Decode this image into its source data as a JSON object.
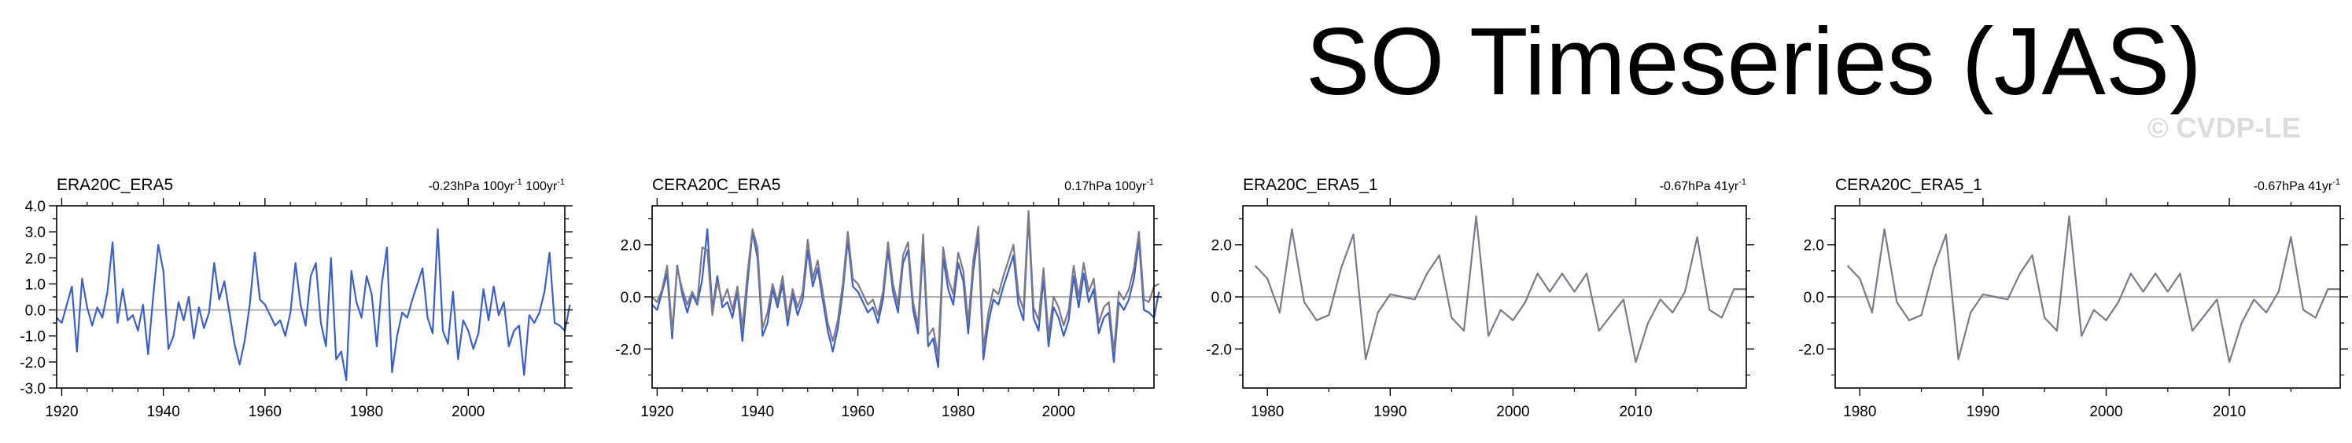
{
  "page": {
    "title": "SO Timeseries (JAS)",
    "watermark": "© CVDP-LE"
  },
  "chart_data": [
    {
      "type": "line",
      "title": "ERA20C_ERA5",
      "trend": {
        "value": "-0.23hPa 100yr",
        "exp1": "-1",
        "mid": " 100yr",
        "exp2": "-1"
      },
      "xlim": [
        1919,
        2019
      ],
      "ylim": [
        -3.0,
        4.0
      ],
      "xticks": [
        1920,
        1940,
        1960,
        1980,
        2000
      ],
      "yticks": [
        -3.0,
        -2.0,
        -1.0,
        0.0,
        1.0,
        2.0,
        3.0,
        4.0
      ],
      "ytick_labels": [
        "-3.0",
        "-2.0",
        "-1.0",
        "0.0",
        "1.0",
        "2.0",
        "3.0",
        "4.0"
      ],
      "zero_line": true,
      "series": [
        {
          "name": "ERA20C_ERA5",
          "color": "#3a5fcd",
          "x_start": 1919,
          "values": [
            -0.3,
            -0.5,
            0.2,
            0.9,
            -1.6,
            1.2,
            0.1,
            -0.6,
            0.1,
            -0.3,
            0.7,
            2.6,
            -0.5,
            0.8,
            -0.4,
            -0.2,
            -0.8,
            0.2,
            -1.7,
            0.5,
            2.5,
            1.5,
            -1.5,
            -1.0,
            0.3,
            -0.4,
            0.5,
            -1.1,
            0.1,
            -0.7,
            -0.1,
            1.8,
            0.4,
            1.1,
            -0.1,
            -1.3,
            -2.1,
            -1.2,
            0.2,
            2.2,
            0.4,
            0.2,
            -0.2,
            -0.6,
            -0.4,
            -1.0,
            -0.1,
            1.8,
            0.2,
            -0.6,
            1.3,
            1.8,
            -0.5,
            -1.4,
            2.0,
            -1.9,
            -1.6,
            -2.7,
            1.5,
            0.3,
            -0.3,
            1.3,
            0.6,
            -1.4,
            1.0,
            2.4,
            -2.4,
            -1.0,
            -0.1,
            -0.3,
            0.4,
            1.0,
            1.6,
            -0.3,
            -0.9,
            3.1,
            -0.8,
            -1.3,
            0.7,
            -1.9,
            -0.4,
            -0.8,
            -1.5,
            -0.9,
            0.8,
            -0.4,
            0.9,
            -0.2,
            0.3,
            -1.4,
            -0.8,
            -0.6,
            -2.5,
            -0.2,
            -0.5,
            -0.1,
            0.7,
            2.2,
            -0.5,
            -0.6,
            -0.8,
            0.2
          ]
        }
      ]
    },
    {
      "type": "line",
      "title": "CERA20C_ERA5",
      "trend": {
        "value": "0.17hPa 100yr",
        "exp1": "-1",
        "mid": "",
        "exp2": ""
      },
      "xlim": [
        1919,
        2019
      ],
      "ylim": [
        -3.5,
        3.5
      ],
      "xticks": [
        1920,
        1940,
        1960,
        1980,
        2000
      ],
      "yticks": [
        -2.0,
        0.0,
        2.0
      ],
      "ytick_labels": [
        "-2.0",
        "0.0",
        "2.0"
      ],
      "zero_line": true,
      "series": [
        {
          "name": "ERA20C_ERA5",
          "color": "#3a5fcd",
          "x_start": 1919,
          "values": [
            -0.3,
            -0.5,
            0.2,
            0.9,
            -1.6,
            1.2,
            0.1,
            -0.6,
            0.1,
            -0.3,
            0.7,
            2.6,
            -0.5,
            0.8,
            -0.4,
            -0.2,
            -0.8,
            0.2,
            -1.7,
            0.5,
            2.5,
            1.5,
            -1.5,
            -1.0,
            0.3,
            -0.4,
            0.5,
            -1.1,
            0.1,
            -0.7,
            -0.1,
            1.8,
            0.4,
            1.1,
            -0.1,
            -1.3,
            -2.1,
            -1.2,
            0.2,
            2.2,
            0.4,
            0.2,
            -0.2,
            -0.6,
            -0.4,
            -1.0,
            -0.1,
            1.8,
            0.2,
            -0.6,
            1.3,
            1.8,
            -0.5,
            -1.4,
            2.0,
            -1.9,
            -1.6,
            -2.7,
            1.5,
            0.3,
            -0.3,
            1.3,
            0.6,
            -1.4,
            1.0,
            2.4,
            -2.4,
            -1.0,
            -0.1,
            -0.3,
            0.4,
            1.0,
            1.6,
            -0.3,
            -0.9,
            3.1,
            -0.8,
            -1.3,
            0.7,
            -1.9,
            -0.4,
            -0.8,
            -1.5,
            -0.9,
            0.8,
            -0.4,
            0.9,
            -0.2,
            0.3,
            -1.4,
            -0.8,
            -0.6,
            -2.5,
            -0.2,
            -0.5,
            -0.1,
            0.7,
            2.2,
            -0.5,
            -0.6,
            -0.8,
            0.2
          ]
        },
        {
          "name": "CERA20C_ERA5",
          "color": "#7a7a8a",
          "x_start": 1919,
          "values": [
            0.0,
            -0.2,
            0.3,
            1.2,
            -1.3,
            1.1,
            0.3,
            -0.3,
            0.2,
            -0.2,
            1.9,
            1.8,
            -0.7,
            0.6,
            -0.2,
            0.3,
            -0.5,
            0.4,
            -1.2,
            0.9,
            2.6,
            1.9,
            -1.2,
            -0.6,
            0.5,
            -0.2,
            0.8,
            -0.8,
            0.3,
            -0.4,
            0.2,
            2.2,
            0.7,
            1.4,
            0.2,
            -1.0,
            -1.7,
            -0.9,
            0.5,
            2.5,
            0.7,
            0.5,
            0.1,
            -0.3,
            -0.1,
            -0.7,
            0.2,
            2.1,
            0.5,
            -0.3,
            1.6,
            2.1,
            -0.2,
            -1.1,
            2.4,
            -1.5,
            -1.2,
            -2.3,
            1.9,
            0.7,
            0.1,
            1.7,
            1.0,
            -1.0,
            1.4,
            2.7,
            -2.0,
            -0.6,
            0.3,
            0.1,
            0.8,
            1.4,
            2.0,
            0.1,
            -0.5,
            3.3,
            -0.4,
            -0.9,
            1.1,
            -1.5,
            0.0,
            -0.4,
            -1.1,
            -0.5,
            1.2,
            0.0,
            1.3,
            0.2,
            0.7,
            -1.0,
            -0.4,
            -0.2,
            -2.1,
            0.2,
            -0.1,
            0.3,
            1.1,
            2.5,
            -0.1,
            -0.2,
            0.4,
            0.5
          ]
        }
      ]
    },
    {
      "type": "line",
      "title": "ERA20C_ERA5_1",
      "trend": {
        "value": "-0.67hPa 41yr",
        "exp1": "-1",
        "mid": "",
        "exp2": ""
      },
      "xlim": [
        1978,
        2019
      ],
      "ylim": [
        -3.5,
        3.5
      ],
      "xticks": [
        1980,
        1990,
        2000,
        2010
      ],
      "yticks": [
        -2.0,
        0.0,
        2.0
      ],
      "ytick_labels": [
        "-2.0",
        "0.0",
        "2.0"
      ],
      "zero_line": true,
      "series": [
        {
          "name": "ERA20C_ERA5_1",
          "color": "#7a7a8a",
          "x_start": 1979,
          "values": [
            1.2,
            0.7,
            -0.6,
            2.6,
            -0.2,
            -0.9,
            -0.7,
            1.1,
            2.4,
            -2.4,
            -0.6,
            0.1,
            0.0,
            -0.1,
            0.9,
            1.6,
            -0.8,
            -1.3,
            3.1,
            -1.5,
            -0.5,
            -0.9,
            -0.2,
            0.9,
            0.2,
            0.9,
            0.2,
            0.9,
            -1.3,
            -0.7,
            -0.1,
            -2.5,
            -1.0,
            -0.1,
            -0.6,
            0.2,
            2.3,
            -0.5,
            -0.8,
            0.3,
            0.3
          ]
        }
      ]
    },
    {
      "type": "line",
      "title": "CERA20C_ERA5_1",
      "trend": {
        "value": "-0.67hPa 41yr",
        "exp1": "-1",
        "mid": "",
        "exp2": ""
      },
      "xlim": [
        1978,
        2019
      ],
      "ylim": [
        -3.5,
        3.5
      ],
      "xticks": [
        1980,
        1990,
        2000,
        2010
      ],
      "yticks": [
        -2.0,
        0.0,
        2.0
      ],
      "ytick_labels": [
        "-2.0",
        "0.0",
        "2.0"
      ],
      "zero_line": true,
      "series": [
        {
          "name": "CERA20C_ERA5_1",
          "color": "#7a7a8a",
          "x_start": 1979,
          "values": [
            1.2,
            0.7,
            -0.6,
            2.6,
            -0.2,
            -0.9,
            -0.7,
            1.1,
            2.4,
            -2.4,
            -0.6,
            0.1,
            0.0,
            -0.1,
            0.9,
            1.6,
            -0.8,
            -1.3,
            3.1,
            -1.5,
            -0.5,
            -0.9,
            -0.2,
            0.9,
            0.2,
            0.9,
            0.2,
            0.9,
            -1.3,
            -0.7,
            -0.1,
            -2.5,
            -1.0,
            -0.1,
            -0.6,
            0.2,
            2.3,
            -0.5,
            -0.8,
            0.3,
            0.3
          ]
        }
      ]
    }
  ]
}
